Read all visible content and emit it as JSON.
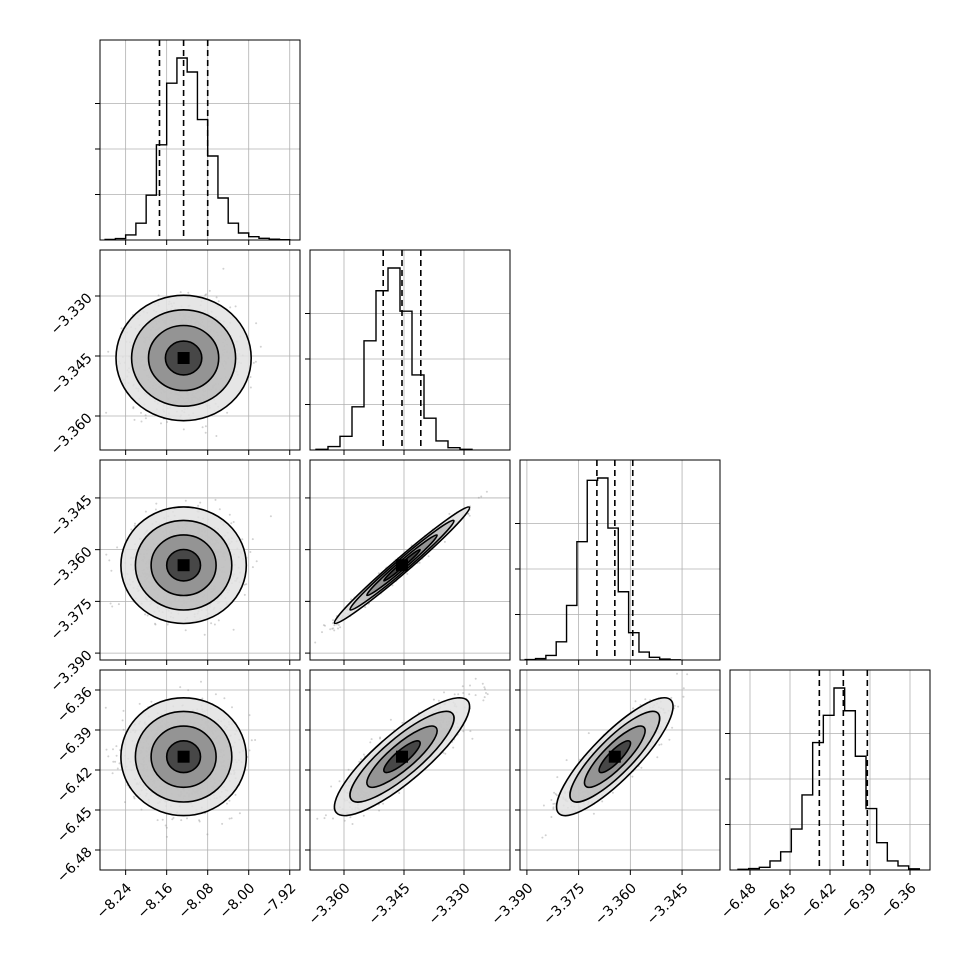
{
  "chart_data": [
    {
      "type": "histogram",
      "variable": 0,
      "range": [
        -8.29,
        -7.9
      ],
      "quantiles": [
        -8.174,
        -8.127,
        -8.08
      ],
      "bins": [
        -8.27,
        -8.25,
        -8.23,
        -8.21,
        -8.19,
        -8.17,
        -8.15,
        -8.13,
        -8.11,
        -8.09,
        -8.07,
        -8.05,
        -8.03,
        -8.01,
        -7.99,
        -7.97,
        -7.95,
        -7.93
      ],
      "counts": [
        2,
        5,
        18,
        60,
        160,
        340,
        560,
        650,
        600,
        430,
        300,
        150,
        60,
        25,
        12,
        6,
        3,
        1
      ]
    },
    {
      "type": "scatter-contour",
      "x_var": 0,
      "y_var": 1,
      "xlim": [
        -8.29,
        -7.9
      ],
      "ylim": [
        -3.3685,
        -3.3185
      ],
      "mean": [
        -8.127,
        -3.3455
      ],
      "std": [
        0.047,
        0.0065
      ],
      "corr": 0.0
    },
    {
      "type": "histogram",
      "variable": 1,
      "range": [
        -3.3685,
        -3.3185
      ],
      "quantiles": [
        -3.3502,
        -3.3455,
        -3.3408
      ],
      "bins": [
        -3.3655,
        -3.3625,
        -3.3595,
        -3.3565,
        -3.3535,
        -3.3505,
        -3.3475,
        -3.3445,
        -3.3415,
        -3.3385,
        -3.3355,
        -3.3325,
        -3.3295
      ],
      "counts": [
        3,
        15,
        60,
        190,
        480,
        700,
        800,
        610,
        330,
        140,
        40,
        10,
        3
      ]
    },
    {
      "type": "scatter-contour",
      "x_var": 0,
      "y_var": 2,
      "xlim": [
        -8.29,
        -7.9
      ],
      "ylim": [
        -3.392,
        -3.334
      ],
      "mean": [
        -8.127,
        -3.3645
      ],
      "std": [
        0.047,
        0.0065
      ],
      "corr": 0.0
    },
    {
      "type": "scatter-contour",
      "x_var": 1,
      "y_var": 2,
      "xlim": [
        -3.3685,
        -3.3185
      ],
      "ylim": [
        -3.392,
        -3.334
      ],
      "mean": [
        -3.3455,
        -3.3645
      ],
      "std": [
        0.0065,
        0.0065
      ],
      "corr": 0.985
    },
    {
      "type": "histogram",
      "variable": 2,
      "range": [
        -3.392,
        -3.334
      ],
      "quantiles": [
        -3.3697,
        -3.3645,
        -3.3593
      ],
      "bins": [
        -3.389,
        -3.386,
        -3.383,
        -3.38,
        -3.377,
        -3.374,
        -3.371,
        -3.368,
        -3.365,
        -3.362,
        -3.359,
        -3.356,
        -3.353,
        -3.35,
        -3.347
      ],
      "counts": [
        2,
        6,
        20,
        80,
        240,
        520,
        790,
        800,
        580,
        300,
        120,
        35,
        12,
        4,
        1
      ]
    },
    {
      "type": "scatter-contour",
      "x_var": 0,
      "y_var": 3,
      "xlim": [
        -8.29,
        -7.9
      ],
      "ylim": [
        -6.495,
        -6.345
      ],
      "mean": [
        -8.127,
        -6.41
      ],
      "std": [
        0.047,
        0.017
      ],
      "corr": 0.0
    },
    {
      "type": "scatter-contour",
      "x_var": 1,
      "y_var": 3,
      "xlim": [
        -3.3685,
        -3.3185
      ],
      "ylim": [
        -6.495,
        -6.345
      ],
      "mean": [
        -3.3455,
        -6.41
      ],
      "std": [
        0.0065,
        0.017
      ],
      "corr": 0.85
    },
    {
      "type": "scatter-contour",
      "x_var": 2,
      "y_var": 3,
      "xlim": [
        -3.392,
        -3.334
      ],
      "ylim": [
        -6.495,
        -6.345
      ],
      "mean": [
        -3.3645,
        -6.41
      ],
      "std": [
        0.0065,
        0.017
      ],
      "corr": 0.85
    },
    {
      "type": "histogram",
      "variable": 3,
      "range": [
        -6.495,
        -6.345
      ],
      "quantiles": [
        -6.428,
        -6.41,
        -6.392
      ],
      "bins": [
        -6.485,
        -6.477,
        -6.469,
        -6.461,
        -6.453,
        -6.445,
        -6.437,
        -6.429,
        -6.421,
        -6.413,
        -6.405,
        -6.397,
        -6.389,
        -6.381,
        -6.373,
        -6.365,
        -6.357
      ],
      "counts": [
        3,
        6,
        12,
        40,
        80,
        180,
        330,
        560,
        680,
        800,
        700,
        500,
        270,
        120,
        40,
        18,
        5
      ]
    }
  ],
  "ticks": {
    "var0": {
      "values": [
        -8.24,
        -8.16,
        -8.08,
        -8.0,
        -7.92
      ],
      "labels": [
        "−8.24",
        "−8.16",
        "−8.08",
        "−8.00",
        "−7.92"
      ]
    },
    "var1": {
      "values": [
        -3.36,
        -3.345,
        -3.33
      ],
      "labels": [
        "−3.360",
        "−3.345",
        "−3.330"
      ]
    },
    "var2": {
      "values": [
        -3.39,
        -3.375,
        -3.36,
        -3.345
      ],
      "labels": [
        "−3.390",
        "−3.375",
        "−3.360",
        "−3.345"
      ]
    },
    "var3": {
      "values": [
        -6.48,
        -6.45,
        -6.42,
        -6.39,
        -6.36
      ],
      "labels": [
        "−6.48",
        "−6.45",
        "−6.42",
        "−6.39",
        "−6.36"
      ]
    }
  },
  "colors": {
    "ink": "#000000",
    "grid": "#b0b0b0",
    "scatter": "#9a9a9a"
  }
}
